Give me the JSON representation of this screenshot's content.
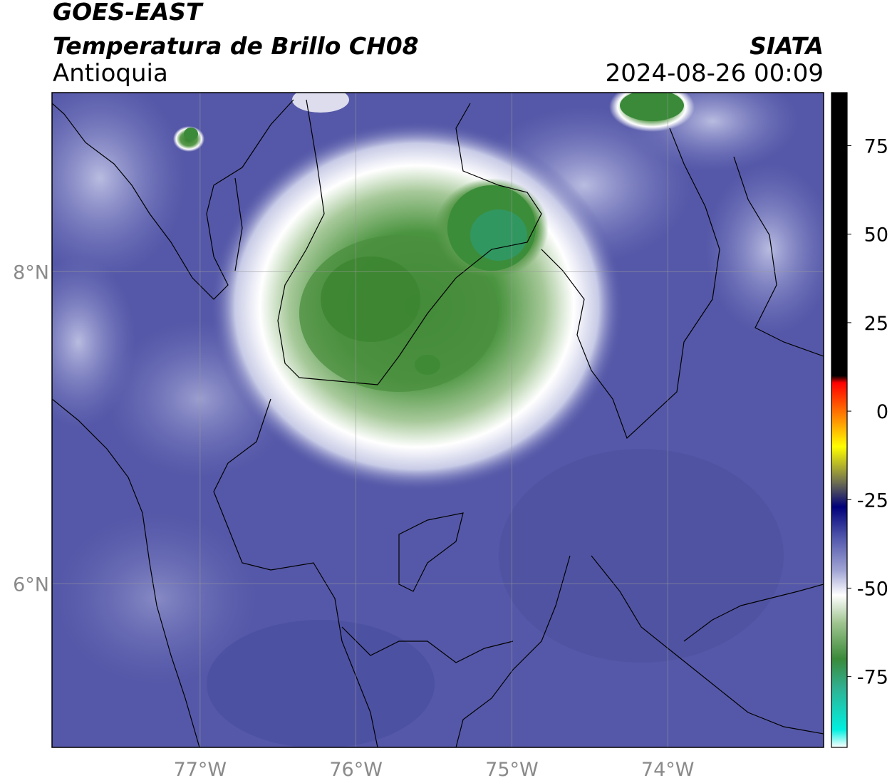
{
  "header": {
    "satellite": "GOES-EAST",
    "product": "Temperatura de Brillo CH08",
    "region": "Antioquia",
    "agency": "SIATA",
    "datetime": "2024-08-26 00:09"
  },
  "map": {
    "lon_range": [
      -77.95,
      -73.0
    ],
    "lat_range": [
      4.95,
      9.15
    ],
    "lon_ticks": [
      {
        "value": -77,
        "label": "77°W"
      },
      {
        "value": -76,
        "label": "76°W"
      },
      {
        "value": -75,
        "label": "75°W"
      },
      {
        "value": -74,
        "label": "74°W"
      }
    ],
    "lat_ticks": [
      {
        "value": 8,
        "label": "8°N"
      },
      {
        "value": 6,
        "label": "6°N"
      }
    ],
    "grid": true,
    "background_color": "#5558a8"
  },
  "colorbar": {
    "range": [
      -95,
      90
    ],
    "ticks": [
      {
        "value": 75,
        "label": "75"
      },
      {
        "value": 50,
        "label": "50"
      },
      {
        "value": 25,
        "label": "25"
      },
      {
        "value": 0,
        "label": "0"
      },
      {
        "value": -25,
        "label": "-25"
      },
      {
        "value": -50,
        "label": "-50"
      },
      {
        "value": -75,
        "label": "-75"
      }
    ],
    "stops": [
      {
        "value": -95,
        "color": "#ffffff"
      },
      {
        "value": -90,
        "color": "#00f0e0"
      },
      {
        "value": -78,
        "color": "#30b090"
      },
      {
        "value": -70,
        "color": "#3a8a3a"
      },
      {
        "value": -60,
        "color": "#9ec48e"
      },
      {
        "value": -52,
        "color": "#ffffff"
      },
      {
        "value": -45,
        "color": "#a0a4d4"
      },
      {
        "value": -35,
        "color": "#4a50a8"
      },
      {
        "value": -27,
        "color": "#00007a"
      },
      {
        "value": -20,
        "color": "#707050"
      },
      {
        "value": -10,
        "color": "#ffff00"
      },
      {
        "value": -3,
        "color": "#ff9900"
      },
      {
        "value": 8,
        "color": "#ff0000"
      },
      {
        "value": 10,
        "color": "#000000"
      },
      {
        "value": 90,
        "color": "#000000"
      }
    ]
  }
}
